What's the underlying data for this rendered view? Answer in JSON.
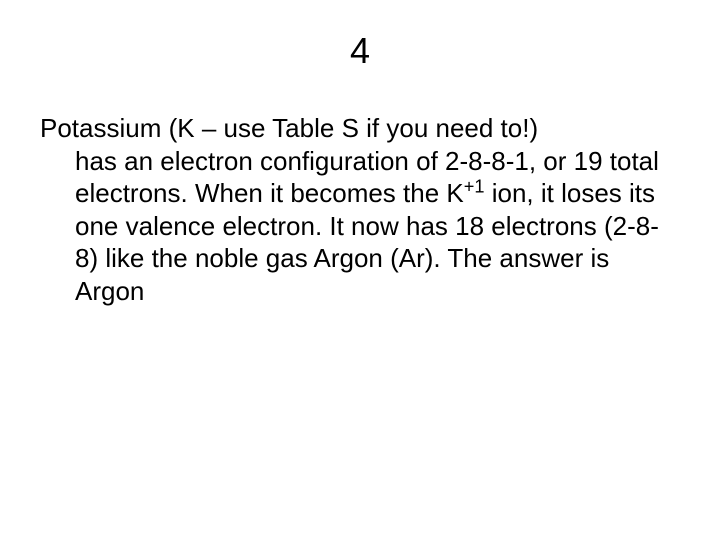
{
  "slide": {
    "title": "4",
    "body_line1": "Potassium (K – use Table S if you need to!)",
    "body_rest_pre": "has an electron configuration of 2-8-8-1, or 19 total electrons.  When it becomes the K",
    "superscript": "+1",
    "body_rest_post": " ion, it loses its one valence electron.  It now has 18 electrons (2-8-8) like the noble gas Argon (Ar).  The answer is Argon"
  },
  "style": {
    "background_color": "#ffffff",
    "text_color": "#000000",
    "title_fontsize": 36,
    "body_fontsize": 26,
    "font_family": "Arial"
  }
}
